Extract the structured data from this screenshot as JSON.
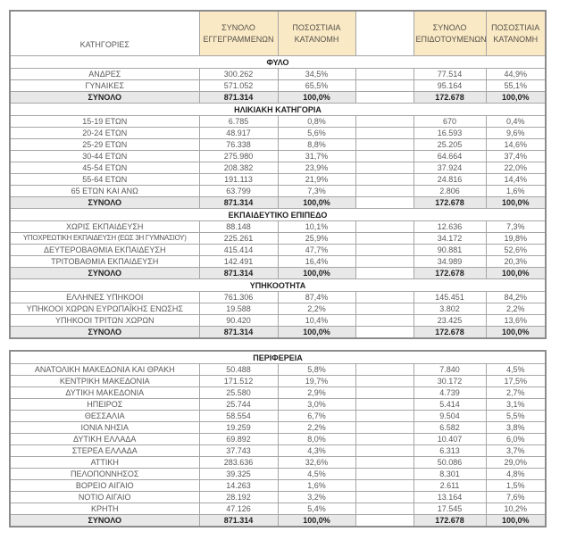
{
  "table": {
    "columns": {
      "category": "ΚΑΤΗΓΟΡΙΕΣ",
      "registered_total": "ΣΥΝΟΛΟ ΕΓΓΕΓΡΑΜΜΕΝΩΝ",
      "registered_pct": "ΠΟΣΟΣΤΙΑΙΑ ΚΑΤΑΝΟΜΗ",
      "subsidized_total": "ΣΥΝΟΛΟ ΕΠΙΔΟΤΟΥΜΕΝΩΝ",
      "subsidized_pct": "ΠΟΣΟΣΤΙΑΙΑ ΚΑΤΑΝΟΜΗ"
    },
    "total_label": "ΣΥΝΟΛΟ",
    "colors": {
      "header_bg": "#fae9c5",
      "total_row_bg": "#e8e8e8",
      "border": "#a6a6a6",
      "text": "#595959"
    },
    "sections": [
      {
        "title": "ΦΥΛΟ",
        "block": 1,
        "rows": [
          {
            "label": "ΑΝΔΡΕΣ",
            "values": [
              "300.262",
              "34,5%",
              "77.514",
              "44,9%"
            ]
          },
          {
            "label": "ΓΥΝΑΙΚΕΣ",
            "values": [
              "571.052",
              "65,5%",
              "95.164",
              "55,1%"
            ]
          }
        ],
        "total": [
          "871.314",
          "100,0%",
          "172.678",
          "100,0%"
        ]
      },
      {
        "title": "ΗΛΙΚΙΑΚΗ ΚΑΤΗΓΟΡΙΑ",
        "block": 1,
        "rows": [
          {
            "label": "15-19 ΕΤΩΝ",
            "values": [
              "6.785",
              "0,8%",
              "670",
              "0,4%"
            ]
          },
          {
            "label": "20-24 ΕΤΩΝ",
            "values": [
              "48.917",
              "5,6%",
              "16.593",
              "9,6%"
            ]
          },
          {
            "label": "25-29 ΕΤΩΝ",
            "values": [
              "76.338",
              "8,8%",
              "25.205",
              "14,6%"
            ]
          },
          {
            "label": "30-44 ΕΤΩΝ",
            "values": [
              "275.980",
              "31,7%",
              "64.664",
              "37,4%"
            ]
          },
          {
            "label": "45-54 ΕΤΩΝ",
            "values": [
              "208.382",
              "23,9%",
              "37.924",
              "22,0%"
            ]
          },
          {
            "label": "55-64 ΕΤΩΝ",
            "values": [
              "191.113",
              "21,9%",
              "24.816",
              "14,4%"
            ]
          },
          {
            "label": "65 ΕΤΩΝ ΚΑΙ ΑΝΩ",
            "values": [
              "63.799",
              "7,3%",
              "2.806",
              "1,6%"
            ]
          }
        ],
        "total": [
          "871.314",
          "100,0%",
          "172.678",
          "100,0%"
        ]
      },
      {
        "title": "ΕΚΠΑΙΔΕΥΤΙΚΟ ΕΠΙΠΕΔΟ",
        "block": 1,
        "rows": [
          {
            "label": "ΧΩΡΙΣ ΕΚΠΑΙΔΕΥΣΗ",
            "values": [
              "88.148",
              "10,1%",
              "12.636",
              "7,3%"
            ]
          },
          {
            "label": "ΥΠΟΧΡΕΩΤΙΚΗ ΕΚΠΑΙΔΕΥΣΗ (ΕΩΣ 3Η ΓΥΜΝΑΣΙΟΥ)",
            "values": [
              "225.261",
              "25,9%",
              "34.172",
              "19,8%"
            ]
          },
          {
            "label": "ΔΕΥΤΕΡΟΒΑΘΜΙΑ ΕΚΠΑΙΔΕΥΣΗ",
            "values": [
              "415.414",
              "47,7%",
              "90.881",
              "52,6%"
            ]
          },
          {
            "label": "ΤΡΙΤΟΒΑΘΜΙΑ ΕΚΠΑΙΔΕΥΣΗ",
            "values": [
              "142.491",
              "16,4%",
              "34.989",
              "20,3%"
            ]
          }
        ],
        "total": [
          "871.314",
          "100,0%",
          "172.678",
          "100,0%"
        ]
      },
      {
        "title": "ΥΠΗΚΟΟΤΗΤΑ",
        "block": 1,
        "rows": [
          {
            "label": "ΕΛΛΗΝΕΣ ΥΠΗΚΟΟΙ",
            "values": [
              "761.306",
              "87,4%",
              "145.451",
              "84,2%"
            ]
          },
          {
            "label": "ΥΠΗΚΟΟΙ ΧΩΡΩΝ ΕΥΡΩΠΑΪΚΗΣ ΕΝΩΣΗΣ",
            "values": [
              "19.588",
              "2,2%",
              "3.802",
              "2,2%"
            ]
          },
          {
            "label": "ΥΠΗΚΟΟΙ ΤΡΙΤΩΝ ΧΩΡΩΝ",
            "values": [
              "90.420",
              "10,4%",
              "23.425",
              "13,6%"
            ]
          }
        ],
        "total": [
          "871.314",
          "100,0%",
          "172.678",
          "100,0%"
        ]
      },
      {
        "title": "ΠΕΡΙΦΕΡΕΙΑ",
        "block": 2,
        "rows": [
          {
            "label": "ΑΝΑΤΟΛΙΚΗ ΜΑΚΕΔΟΝΙΑ ΚΑΙ ΘΡΑΚΗ",
            "values": [
              "50.488",
              "5,8%",
              "7.840",
              "4,5%"
            ]
          },
          {
            "label": "ΚΕΝΤΡΙΚΗ ΜΑΚΕΔΟΝΙΑ",
            "values": [
              "171.512",
              "19,7%",
              "30.172",
              "17,5%"
            ]
          },
          {
            "label": "ΔΥΤΙΚΗ ΜΑΚΕΔΟΝΙΑ",
            "values": [
              "25.580",
              "2,9%",
              "4.739",
              "2,7%"
            ]
          },
          {
            "label": "ΗΠΕΙΡΟΣ",
            "values": [
              "25.744",
              "3,0%",
              "5.414",
              "3,1%"
            ]
          },
          {
            "label": "ΘΕΣΣΑΛΙΑ",
            "values": [
              "58.554",
              "6,7%",
              "9.504",
              "5,5%"
            ]
          },
          {
            "label": "ΙΟΝΙΑ ΝΗΣΙΑ",
            "values": [
              "19.259",
              "2,2%",
              "6.582",
              "3,8%"
            ]
          },
          {
            "label": "ΔΥΤΙΚΗ ΕΛΛΑΔΑ",
            "values": [
              "69.892",
              "8,0%",
              "10.407",
              "6,0%"
            ]
          },
          {
            "label": "ΣΤΕΡΕΑ ΕΛΛΑΔΑ",
            "values": [
              "37.743",
              "4,3%",
              "6.313",
              "3,7%"
            ]
          },
          {
            "label": "ΑΤΤΙΚΗ",
            "values": [
              "283.636",
              "32,6%",
              "50.086",
              "29,0%"
            ]
          },
          {
            "label": "ΠΕΛΟΠΟΝΝΗΣΟΣ",
            "values": [
              "39.325",
              "4,5%",
              "8.301",
              "4,8%"
            ]
          },
          {
            "label": "ΒΟΡΕΙΟ ΑΙΓΑΙΟ",
            "values": [
              "14.263",
              "1,6%",
              "2.611",
              "1,5%"
            ]
          },
          {
            "label": "ΝΟΤΙΟ ΑΙΓΑΙΟ",
            "values": [
              "28.192",
              "3,2%",
              "13.164",
              "7,6%"
            ]
          },
          {
            "label": "ΚΡΗΤΗ",
            "values": [
              "47.126",
              "5,4%",
              "17.545",
              "10,2%"
            ]
          }
        ],
        "total": [
          "871.314",
          "100,0%",
          "172.678",
          "100,0%"
        ]
      }
    ]
  }
}
